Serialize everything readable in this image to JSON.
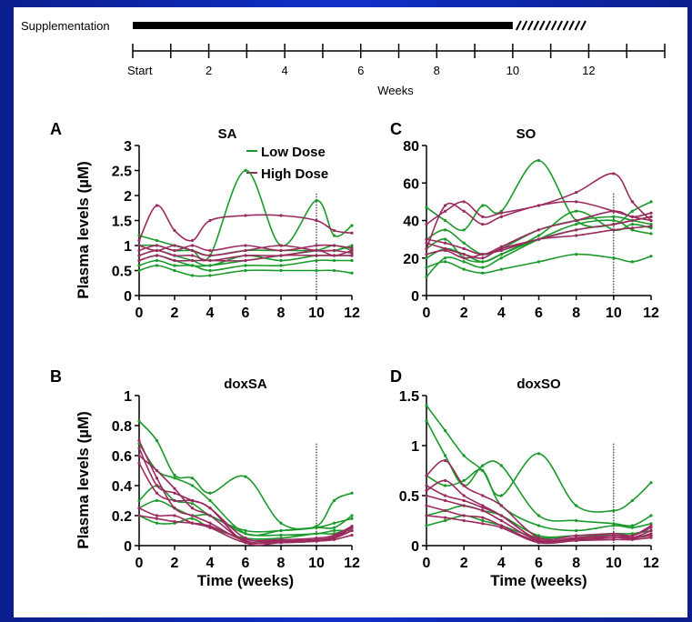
{
  "timeline": {
    "label": "Supplementation",
    "supplementation_end_week": 10,
    "dashed_end_week": 12,
    "tick_labels": [
      "Start",
      "2",
      "4",
      "6",
      "8",
      "10",
      "12"
    ],
    "xlabel": "Weeks",
    "max_week": 14
  },
  "legend": {
    "low_dose": "Low Dose",
    "high_dose": "High Dose",
    "low_color": "#1a9a2a",
    "high_color": "#9b2a5e"
  },
  "chart_data": [
    {
      "id": "A",
      "type": "line",
      "title": "SA",
      "xlabel": "",
      "ylabel": "Plasma levels (µM)",
      "x": [
        0,
        1,
        2,
        3,
        4,
        6,
        8,
        10,
        11,
        12
      ],
      "xlim": [
        0,
        12
      ],
      "ylim": [
        0,
        3
      ],
      "xticks": [
        0,
        2,
        4,
        6,
        8,
        10,
        12
      ],
      "yticks": [
        0,
        0.5,
        1,
        1.5,
        2,
        2.5,
        3
      ],
      "vline": 10,
      "series": [
        {
          "group": "low",
          "values": [
            1.2,
            1.1,
            1.0,
            0.9,
            0.8,
            2.5,
            1.0,
            1.9,
            1.2,
            1.4
          ]
        },
        {
          "group": "low",
          "values": [
            0.7,
            0.8,
            0.7,
            0.6,
            0.6,
            0.7,
            0.8,
            0.9,
            1.0,
            0.9
          ]
        },
        {
          "group": "low",
          "values": [
            0.5,
            0.6,
            0.5,
            0.4,
            0.4,
            0.5,
            0.5,
            0.5,
            0.5,
            0.45
          ]
        },
        {
          "group": "low",
          "values": [
            0.8,
            0.9,
            0.8,
            0.7,
            0.6,
            0.8,
            0.7,
            0.8,
            0.8,
            0.8
          ]
        },
        {
          "group": "low",
          "values": [
            1.0,
            1.0,
            0.9,
            0.9,
            0.8,
            0.9,
            0.9,
            0.9,
            0.9,
            1.0
          ]
        },
        {
          "group": "low",
          "values": [
            0.6,
            0.7,
            0.6,
            0.6,
            0.5,
            0.6,
            0.6,
            0.7,
            0.7,
            0.7
          ]
        },
        {
          "group": "high",
          "values": [
            1.1,
            1.8,
            1.3,
            1.1,
            1.5,
            1.6,
            1.6,
            1.5,
            1.3,
            1.25
          ]
        },
        {
          "group": "high",
          "values": [
            0.9,
            1.0,
            0.9,
            1.0,
            0.9,
            1.0,
            0.9,
            1.0,
            1.0,
            0.95
          ]
        },
        {
          "group": "high",
          "values": [
            0.8,
            0.9,
            0.8,
            0.8,
            0.7,
            0.8,
            0.8,
            0.9,
            0.8,
            0.9
          ]
        },
        {
          "group": "high",
          "values": [
            0.7,
            0.8,
            0.7,
            0.7,
            0.7,
            0.7,
            0.8,
            0.8,
            0.8,
            0.8
          ]
        },
        {
          "group": "high",
          "values": [
            1.0,
            0.9,
            1.0,
            0.9,
            0.8,
            0.9,
            1.0,
            0.9,
            0.9,
            0.85
          ]
        }
      ]
    },
    {
      "id": "C",
      "type": "line",
      "title": "SO",
      "xlabel": "",
      "ylabel": "",
      "x": [
        0,
        1,
        2,
        3,
        4,
        6,
        8,
        10,
        11,
        12
      ],
      "xlim": [
        0,
        12
      ],
      "ylim": [
        0,
        80
      ],
      "xticks": [
        0,
        2,
        4,
        6,
        8,
        10,
        12
      ],
      "yticks": [
        0,
        20,
        40,
        60,
        80
      ],
      "vline": 10,
      "series": [
        {
          "group": "low",
          "values": [
            47,
            40,
            35,
            48,
            45,
            72,
            40,
            38,
            45,
            50
          ]
        },
        {
          "group": "low",
          "values": [
            15,
            18,
            14,
            12,
            14,
            18,
            22,
            20,
            18,
            21
          ]
        },
        {
          "group": "low",
          "values": [
            25,
            30,
            20,
            18,
            22,
            30,
            35,
            38,
            40,
            42
          ]
        },
        {
          "group": "low",
          "values": [
            10,
            20,
            18,
            15,
            20,
            30,
            38,
            40,
            35,
            33
          ]
        },
        {
          "group": "low",
          "values": [
            30,
            35,
            28,
            22,
            25,
            35,
            40,
            42,
            40,
            38
          ]
        },
        {
          "group": "low",
          "values": [
            20,
            25,
            22,
            18,
            22,
            32,
            45,
            35,
            38,
            36
          ]
        },
        {
          "group": "high",
          "values": [
            38,
            45,
            50,
            42,
            44,
            48,
            55,
            65,
            50,
            40
          ]
        },
        {
          "group": "high",
          "values": [
            28,
            25,
            22,
            20,
            25,
            30,
            35,
            38,
            40,
            42
          ]
        },
        {
          "group": "high",
          "values": [
            25,
            48,
            45,
            38,
            42,
            48,
            50,
            45,
            42,
            40
          ]
        },
        {
          "group": "high",
          "values": [
            22,
            24,
            20,
            22,
            24,
            30,
            32,
            35,
            36,
            37
          ]
        },
        {
          "group": "high",
          "values": [
            30,
            28,
            25,
            22,
            26,
            35,
            40,
            45,
            42,
            44
          ]
        }
      ]
    },
    {
      "id": "B",
      "type": "line",
      "title": "doxSA",
      "xlabel": "Time (weeks)",
      "ylabel": "Plasma levels (µM)",
      "x": [
        0,
        1,
        2,
        3,
        4,
        6,
        8,
        10,
        11,
        12
      ],
      "xlim": [
        0,
        12
      ],
      "ylim": [
        0,
        1
      ],
      "xticks": [
        0,
        2,
        4,
        6,
        8,
        10,
        12
      ],
      "yticks": [
        0,
        0.2,
        0.4,
        0.6,
        0.8,
        1
      ],
      "vline": 10,
      "series": [
        {
          "group": "low",
          "values": [
            0.83,
            0.7,
            0.47,
            0.45,
            0.35,
            0.46,
            0.15,
            0.13,
            0.3,
            0.35
          ]
        },
        {
          "group": "low",
          "values": [
            0.68,
            0.5,
            0.45,
            0.4,
            0.3,
            0.08,
            0.1,
            0.12,
            0.12,
            0.2
          ]
        },
        {
          "group": "low",
          "values": [
            0.3,
            0.4,
            0.3,
            0.28,
            0.2,
            0.1,
            0.1,
            0.12,
            0.15,
            0.18
          ]
        },
        {
          "group": "low",
          "values": [
            0.2,
            0.15,
            0.15,
            0.18,
            0.12,
            0.05,
            0.05,
            0.08,
            0.08,
            0.12
          ]
        },
        {
          "group": "low",
          "values": [
            0.25,
            0.3,
            0.25,
            0.2,
            0.2,
            0.08,
            0.07,
            0.08,
            0.1,
            0.1
          ]
        },
        {
          "group": "high",
          "values": [
            0.65,
            0.4,
            0.35,
            0.3,
            0.25,
            0.02,
            0.02,
            0.03,
            0.05,
            0.12
          ]
        },
        {
          "group": "high",
          "values": [
            0.6,
            0.5,
            0.38,
            0.25,
            0.2,
            0.03,
            0.03,
            0.03,
            0.05,
            0.1
          ]
        },
        {
          "group": "high",
          "values": [
            0.55,
            0.35,
            0.3,
            0.3,
            0.25,
            0.05,
            0.03,
            0.04,
            0.06,
            0.12
          ]
        },
        {
          "group": "high",
          "values": [
            0.25,
            0.2,
            0.2,
            0.15,
            0.12,
            0.02,
            0.03,
            0.04,
            0.05,
            0.1
          ]
        },
        {
          "group": "high",
          "values": [
            0.7,
            0.45,
            0.25,
            0.2,
            0.15,
            0.03,
            0.02,
            0.03,
            0.04,
            0.07
          ]
        },
        {
          "group": "high",
          "values": [
            0.2,
            0.18,
            0.16,
            0.15,
            0.13,
            0.04,
            0.04,
            0.05,
            0.07,
            0.13
          ]
        }
      ]
    },
    {
      "id": "D",
      "type": "line",
      "title": "doxSO",
      "xlabel": "Time (weeks)",
      "ylabel": "",
      "x": [
        0,
        1,
        2,
        3,
        4,
        6,
        8,
        10,
        11,
        12
      ],
      "xlim": [
        0,
        12
      ],
      "ylim": [
        0,
        1.5
      ],
      "xticks": [
        0,
        2,
        4,
        6,
        8,
        10,
        12
      ],
      "yticks": [
        0,
        0.5,
        1,
        1.5
      ],
      "vline": 10,
      "series": [
        {
          "group": "low",
          "values": [
            1.4,
            1.15,
            0.9,
            0.75,
            0.5,
            0.92,
            0.4,
            0.35,
            0.45,
            0.63
          ]
        },
        {
          "group": "low",
          "values": [
            1.25,
            0.9,
            0.6,
            0.8,
            0.8,
            0.3,
            0.25,
            0.22,
            0.2,
            0.3
          ]
        },
        {
          "group": "low",
          "values": [
            0.7,
            0.6,
            0.65,
            0.75,
            0.4,
            0.2,
            0.15,
            0.2,
            0.18,
            0.22
          ]
        },
        {
          "group": "low",
          "values": [
            0.3,
            0.35,
            0.4,
            0.35,
            0.3,
            0.1,
            0.1,
            0.12,
            0.12,
            0.15
          ]
        },
        {
          "group": "low",
          "values": [
            0.2,
            0.25,
            0.3,
            0.25,
            0.2,
            0.08,
            0.1,
            0.1,
            0.08,
            0.1
          ]
        },
        {
          "group": "high",
          "values": [
            0.7,
            0.85,
            0.6,
            0.5,
            0.4,
            0.08,
            0.1,
            0.12,
            0.1,
            0.18
          ]
        },
        {
          "group": "high",
          "values": [
            0.55,
            0.65,
            0.5,
            0.4,
            0.3,
            0.06,
            0.08,
            0.1,
            0.08,
            0.15
          ]
        },
        {
          "group": "high",
          "values": [
            0.5,
            0.45,
            0.4,
            0.35,
            0.25,
            0.05,
            0.06,
            0.1,
            0.1,
            0.2
          ]
        },
        {
          "group": "high",
          "values": [
            0.4,
            0.35,
            0.3,
            0.28,
            0.2,
            0.04,
            0.05,
            0.08,
            0.07,
            0.12
          ]
        },
        {
          "group": "high",
          "values": [
            0.6,
            0.5,
            0.45,
            0.38,
            0.3,
            0.06,
            0.07,
            0.08,
            0.08,
            0.1
          ]
        },
        {
          "group": "high",
          "values": [
            0.3,
            0.28,
            0.25,
            0.22,
            0.18,
            0.03,
            0.05,
            0.06,
            0.06,
            0.08
          ]
        }
      ]
    }
  ]
}
